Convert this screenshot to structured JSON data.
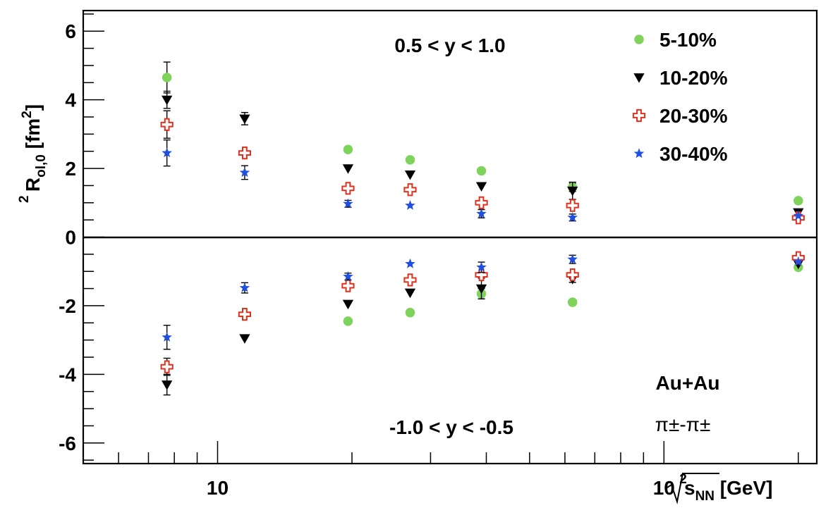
{
  "chart_data": {
    "type": "scatter",
    "x_scale": "log",
    "xlim": [
      5.0,
      220
    ],
    "ylim": [
      -6.6,
      6.6
    ],
    "xticks": [
      {
        "value": 10,
        "label": "10"
      },
      {
        "value": 100,
        "label": "10",
        "sup": "2"
      }
    ],
    "yticks": [
      -6,
      -4,
      -2,
      0,
      2,
      4,
      6
    ],
    "ytick_labels": [
      "-6",
      "-4",
      "-2",
      "0",
      "2",
      "4",
      "6"
    ],
    "ylabel": {
      "main": "R",
      "sup": "2",
      "sub": "ol,0",
      "unit_open": " [fm",
      "unit_sup": "2",
      "unit_close": "]"
    },
    "xlabel": {
      "main": "s",
      "sub": "NN",
      "unit": " [GeV]"
    },
    "annotations": {
      "upper": "0.5 < y < 1.0",
      "lower": "-1.0 < y < -0.5",
      "system": "Au+Au",
      "pair": "π±-π±"
    },
    "legend_placement": "top-right",
    "grid": false,
    "series": [
      {
        "name": "5-10%",
        "marker": "circle",
        "color": "#7ed35a",
        "points": [
          {
            "x": 7.7,
            "y": 4.65
          },
          {
            "x": 19.6,
            "y": 2.55
          },
          {
            "x": 27,
            "y": 2.25
          },
          {
            "x": 39,
            "y": 1.93
          },
          {
            "x": 62.4,
            "y": 1.45
          },
          {
            "x": 200,
            "y": 1.06
          },
          {
            "x": 19.6,
            "y": -2.45
          },
          {
            "x": 27,
            "y": -2.2
          },
          {
            "x": 39,
            "y": -1.65
          },
          {
            "x": 62.4,
            "y": -1.9
          },
          {
            "x": 200,
            "y": -0.88
          }
        ],
        "errors": [
          0.45,
          0.06,
          0.06,
          0.06,
          0.12,
          0.06,
          0.06,
          0.06,
          0.15,
          0.06,
          0.05
        ]
      },
      {
        "name": "10-20%",
        "marker": "triangle-down",
        "color": "#000000",
        "points": [
          {
            "x": 7.7,
            "y": 4.0
          },
          {
            "x": 11.5,
            "y": 3.45
          },
          {
            "x": 19.6,
            "y": 2.0
          },
          {
            "x": 27,
            "y": 1.82
          },
          {
            "x": 39,
            "y": 1.48
          },
          {
            "x": 62.4,
            "y": 1.35
          },
          {
            "x": 200,
            "y": 0.72
          },
          {
            "x": 7.7,
            "y": -4.3
          },
          {
            "x": 11.5,
            "y": -2.95
          },
          {
            "x": 19.6,
            "y": -1.95
          },
          {
            "x": 27,
            "y": -1.62
          },
          {
            "x": 39,
            "y": -1.5
          },
          {
            "x": 62.4,
            "y": -1.22
          },
          {
            "x": 200,
            "y": -0.78
          }
        ],
        "errors": [
          0.25,
          0.18,
          0.06,
          0.06,
          0.06,
          0.25,
          0.06,
          0.3,
          0.06,
          0.06,
          0.06,
          0.3,
          0.1,
          0.06
        ]
      },
      {
        "name": "20-30%",
        "marker": "open-cross",
        "color": "#e0301e",
        "points": [
          {
            "x": 7.7,
            "y": 3.28
          },
          {
            "x": 11.5,
            "y": 2.45
          },
          {
            "x": 19.6,
            "y": 1.42
          },
          {
            "x": 27,
            "y": 1.38
          },
          {
            "x": 39,
            "y": 1.0
          },
          {
            "x": 62.4,
            "y": 0.92
          },
          {
            "x": 200,
            "y": 0.56
          },
          {
            "x": 7.7,
            "y": -3.78
          },
          {
            "x": 11.5,
            "y": -2.25
          },
          {
            "x": 19.6,
            "y": -1.42
          },
          {
            "x": 27,
            "y": -1.25
          },
          {
            "x": 39,
            "y": -1.1
          },
          {
            "x": 62.4,
            "y": -1.1
          },
          {
            "x": 200,
            "y": -0.6
          }
        ],
        "errors": [
          0.4,
          0.06,
          0.06,
          0.06,
          0.06,
          0.06,
          0.06,
          0.25,
          0.06,
          0.06,
          0.06,
          0.06,
          0.06,
          0.06
        ]
      },
      {
        "name": "30-40%",
        "marker": "star",
        "color": "#1f4fe0",
        "points": [
          {
            "x": 7.7,
            "y": 2.45
          },
          {
            "x": 11.5,
            "y": 1.88
          },
          {
            "x": 19.6,
            "y": 0.97
          },
          {
            "x": 27,
            "y": 0.92
          },
          {
            "x": 39,
            "y": 0.68
          },
          {
            "x": 62.4,
            "y": 0.57
          },
          {
            "x": 200,
            "y": 0.62
          },
          {
            "x": 7.7,
            "y": -2.92
          },
          {
            "x": 11.5,
            "y": -1.48
          },
          {
            "x": 19.6,
            "y": -1.15
          },
          {
            "x": 27,
            "y": -0.78
          },
          {
            "x": 39,
            "y": -0.88
          },
          {
            "x": 62.4,
            "y": -0.65
          },
          {
            "x": 200,
            "y": -0.72
          }
        ],
        "errors": [
          0.38,
          0.2,
          0.1,
          0.06,
          0.12,
          0.1,
          0.06,
          0.35,
          0.15,
          0.1,
          0.06,
          0.15,
          0.12,
          0.06
        ]
      }
    ]
  }
}
